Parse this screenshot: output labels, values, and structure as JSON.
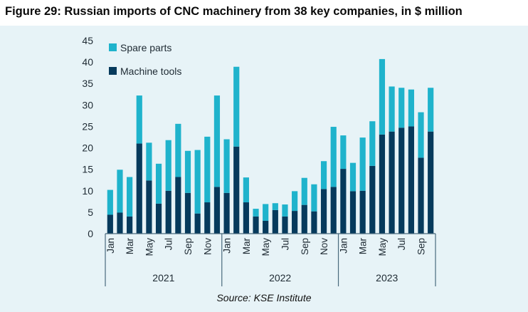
{
  "title": "Figure 29: Russian imports of CNC machinery from 38 key companies, in $ million",
  "source": "Source: KSE Institute",
  "colors": {
    "machine_tools": "#063a5c",
    "spare_parts": "#1fb3cc",
    "panel_bg": "#e7f3f7",
    "axis": "#4a6a7d"
  },
  "chart_data": {
    "type": "bar",
    "stacked": true,
    "title": "Figure 29: Russian imports of CNC machinery from 38 key companies, in $ million",
    "ylim": [
      0,
      45
    ],
    "yticks": [
      "0",
      "5",
      "10",
      "15",
      "20",
      "25",
      "30",
      "35",
      "40",
      "45"
    ],
    "xlabel": "",
    "ylabel": "",
    "legend_position": "top-left",
    "categories": [
      "Jan",
      "Feb",
      "Mar",
      "Apr",
      "May",
      "Jun",
      "Jul",
      "Aug",
      "Sep",
      "Oct",
      "Nov",
      "Dec",
      "Jan",
      "Feb",
      "Mar",
      "Apr",
      "May",
      "Jun",
      "Jul",
      "Aug",
      "Sep",
      "Oct",
      "Nov",
      "Dec",
      "Jan",
      "Feb",
      "Mar",
      "Apr",
      "May",
      "Jun",
      "Jul",
      "Aug",
      "Sep",
      "Oct"
    ],
    "tick_labels": [
      "Jan",
      "",
      "Mar",
      "",
      "May",
      "",
      "Jul",
      "",
      "Sep",
      "",
      "Nov",
      "",
      "Jan",
      "",
      "Mar",
      "",
      "May",
      "",
      "Jul",
      "",
      "Sep",
      "",
      "Nov",
      "",
      "Jan",
      "",
      "Mar",
      "",
      "May",
      "",
      "Jul",
      "",
      "Sep",
      ""
    ],
    "years": [
      {
        "label": "2021",
        "months": 12
      },
      {
        "label": "2022",
        "months": 12
      },
      {
        "label": "2023",
        "months": 10
      }
    ],
    "series": [
      {
        "name": "Machine tools",
        "color": "#063a5c",
        "values": [
          4.4,
          4.9,
          4.0,
          21.0,
          12.4,
          7.0,
          10.0,
          13.2,
          9.5,
          4.7,
          7.3,
          10.9,
          9.5,
          20.3,
          7.3,
          4.0,
          3.0,
          5.5,
          4.0,
          5.3,
          6.7,
          5.2,
          10.4,
          10.9,
          15.1,
          9.9,
          10.0,
          15.8,
          23.1,
          23.8,
          24.7,
          25.0,
          17.7,
          23.8
        ]
      },
      {
        "name": "Spare parts",
        "color": "#1fb3cc",
        "values": [
          5.8,
          10.0,
          9.2,
          11.2,
          8.8,
          9.3,
          11.8,
          12.4,
          9.8,
          14.8,
          15.3,
          21.3,
          12.5,
          18.6,
          5.8,
          1.8,
          3.9,
          1.6,
          2.8,
          4.6,
          6.3,
          6.3,
          6.5,
          14.0,
          7.8,
          6.6,
          12.4,
          10.4,
          17.6,
          10.5,
          9.3,
          8.6,
          10.6,
          10.2
        ]
      }
    ]
  }
}
